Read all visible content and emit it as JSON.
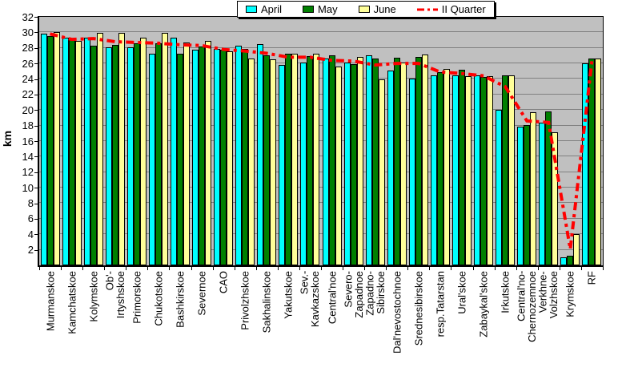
{
  "chart_data": {
    "type": "bar",
    "title": "",
    "ylabel": "km",
    "ylim": [
      0,
      32
    ],
    "yticks": [
      2,
      4,
      6,
      8,
      10,
      12,
      14,
      16,
      18,
      20,
      22,
      24,
      26,
      28,
      30,
      32
    ],
    "grid": true,
    "legend_position": "top-center",
    "plot_background": "#c0c0c0",
    "gridline_color": "#808080",
    "categories": [
      "Murmanskoe",
      "Kamchatskoe",
      "Kolymskoe",
      "Ob'-\nIrtyshskoe",
      "Primorskoe",
      "Chukotskoe",
      "Bashkirskoe",
      "Severnoe",
      "CAO",
      "Privolzhskoe",
      "Sakhalinskoe",
      "Yakutskoe",
      "Sev.-\nKavkazskoe",
      "Central'noe",
      "Severo-\nZapadnoe",
      "Zapadno-\nSibirskoe",
      "Dal'nevostochnoe",
      "Srednesibirskoe",
      "resp.Tatarstan",
      "Ural'skoe",
      "Zabaykal'skoe",
      "Irkutskoe",
      "Central'no-\nChernozemnoe",
      "Verkhne-\nVolzhskoe",
      "Krymskoe",
      "RF"
    ],
    "series": [
      {
        "name": "April",
        "color": "#00ffff",
        "values": [
          29.8,
          29.3,
          29.3,
          28.1,
          28.1,
          27.3,
          29.3,
          27.8,
          27.9,
          28.3,
          28.5,
          25.8,
          26.1,
          26.6,
          26.1,
          27.0,
          25.1,
          24.0,
          24.5,
          24.5,
          24.5,
          20.0,
          17.9,
          18.4,
          1.0,
          26.0
        ]
      },
      {
        "name": "May",
        "color": "#008000",
        "values": [
          29.5,
          29.1,
          28.3,
          28.4,
          28.6,
          28.6,
          27.2,
          28.2,
          27.8,
          27.9,
          27.0,
          27.3,
          26.9,
          27.0,
          25.9,
          26.6,
          26.7,
          26.8,
          24.9,
          25.2,
          24.3,
          24.5,
          18.1,
          19.8,
          1.2,
          26.6
        ]
      },
      {
        "name": "June",
        "color": "#ffff99",
        "values": [
          30.0,
          28.9,
          29.9,
          29.9,
          29.3,
          29.9,
          28.7,
          28.9,
          27.6,
          26.6,
          26.5,
          27.2,
          27.3,
          25.6,
          26.8,
          23.9,
          26.1,
          27.1,
          25.3,
          24.4,
          24.4,
          24.5,
          19.7,
          17.1,
          4.0,
          26.6
        ]
      }
    ],
    "line_series": {
      "name": "II Quarter",
      "color": "#ff0000",
      "style": "dash-dot",
      "values": [
        29.8,
        29.1,
        29.2,
        28.8,
        28.7,
        28.6,
        28.4,
        28.3,
        27.8,
        27.6,
        27.3,
        26.8,
        26.8,
        26.4,
        26.3,
        25.8,
        26.0,
        26.0,
        24.9,
        24.7,
        24.4,
        23.0,
        18.6,
        18.4,
        2.1,
        26.4
      ]
    }
  }
}
